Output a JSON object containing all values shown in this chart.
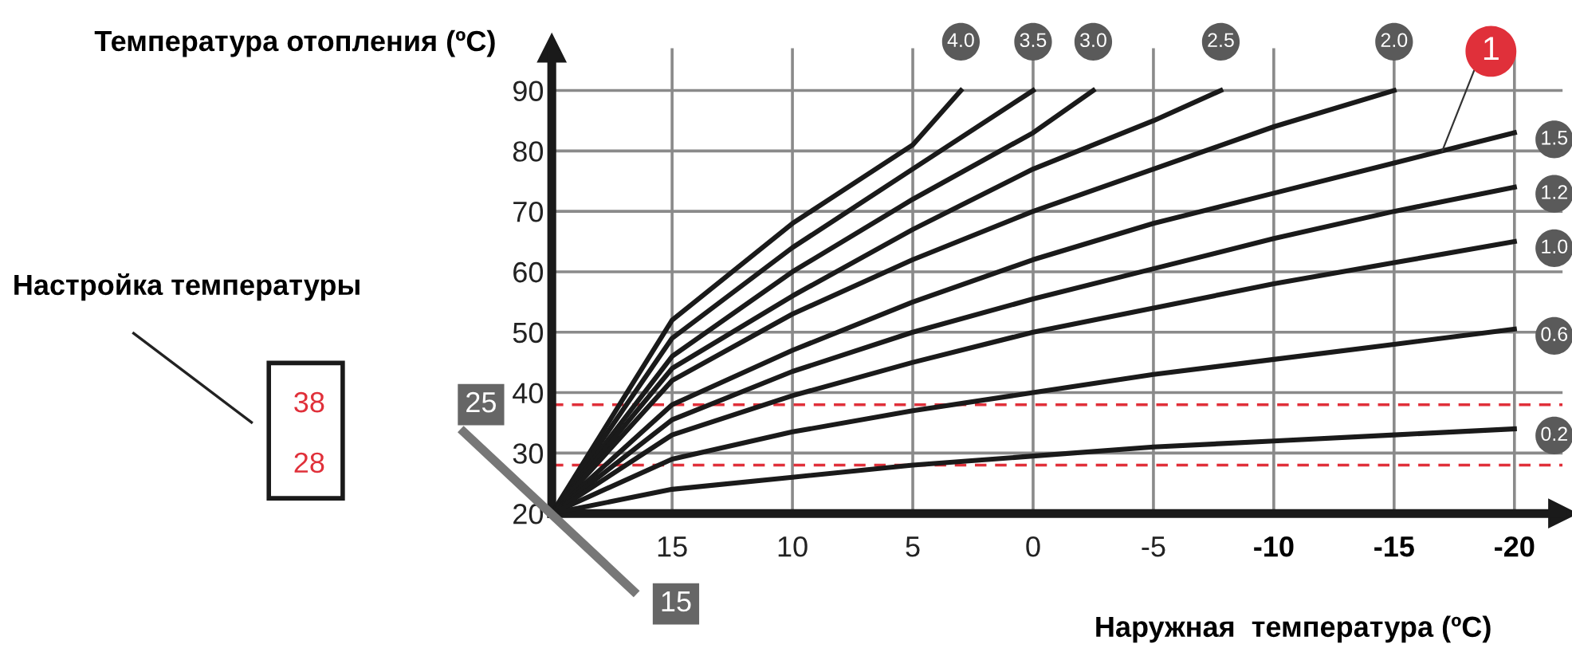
{
  "chart_data": {
    "type": "line",
    "xlabel": "Наружная  температура (ºC)",
    "ylabel": "Температура отопления (ºC)",
    "xlim": [
      20,
      -22
    ],
    "ylim": [
      20,
      97
    ],
    "xticks": [
      15,
      10,
      5,
      0,
      -5,
      -10,
      -15,
      -20
    ],
    "yticks": [
      20,
      30,
      40,
      50,
      60,
      70,
      80,
      90
    ],
    "grid": true,
    "legend": false,
    "marker": "none",
    "line_style": "solid",
    "series": [
      {
        "name": "4.0",
        "color": "#1a1a1a",
        "x": [
          20,
          15,
          10,
          5,
          3
        ],
        "values": [
          20,
          52,
          68,
          81,
          90
        ]
      },
      {
        "name": "3.5",
        "color": "#1a1a1a",
        "x": [
          20,
          15,
          10,
          5,
          0
        ],
        "values": [
          20,
          49,
          64,
          77,
          90
        ]
      },
      {
        "name": "3.0",
        "color": "#1a1a1a",
        "x": [
          20,
          15,
          10,
          5,
          0,
          -2.5
        ],
        "values": [
          20,
          46,
          60,
          72,
          83,
          90
        ]
      },
      {
        "name": "2.5",
        "color": "#1a1a1a",
        "x": [
          20,
          15,
          10,
          5,
          0,
          -5,
          -7.8
        ],
        "values": [
          20,
          44,
          56,
          67,
          77,
          85,
          90
        ]
      },
      {
        "name": "2.0",
        "color": "#1a1a1a",
        "x": [
          20,
          15,
          10,
          5,
          0,
          -5,
          -10,
          -15
        ],
        "values": [
          20,
          42,
          53,
          62,
          70,
          77,
          84,
          90
        ]
      },
      {
        "name": "1.5",
        "color": "#1a1a1a",
        "x": [
          20,
          15,
          10,
          5,
          0,
          -5,
          -10,
          -15,
          -20
        ],
        "values": [
          20,
          38,
          47,
          55,
          62,
          68,
          73,
          78,
          83
        ]
      },
      {
        "name": "1.2",
        "color": "#1a1a1a",
        "x": [
          20,
          15,
          10,
          5,
          0,
          -5,
          -10,
          -15,
          -20
        ],
        "values": [
          20,
          35.5,
          43.5,
          50,
          55.5,
          60.5,
          65.5,
          70,
          74
        ]
      },
      {
        "name": "1.0",
        "color": "#1a1a1a",
        "x": [
          20,
          15,
          10,
          5,
          0,
          -5,
          -10,
          -15,
          -20
        ],
        "values": [
          20,
          33,
          39.5,
          45,
          50,
          54,
          58,
          61.5,
          65
        ]
      },
      {
        "name": "0.6",
        "color": "#1a1a1a",
        "x": [
          20,
          15,
          10,
          5,
          0,
          -5,
          -10,
          -15,
          -20
        ],
        "values": [
          20,
          29,
          33.5,
          37,
          40,
          43,
          45.5,
          48,
          50.5
        ]
      },
      {
        "name": "0.2",
        "color": "#1a1a1a",
        "x": [
          20,
          15,
          10,
          5,
          0,
          -5,
          -10,
          -15,
          -20
        ],
        "values": [
          20,
          24,
          26,
          28,
          29.5,
          31,
          32,
          33,
          34
        ]
      }
    ],
    "ref_lines": [
      {
        "axis": "y",
        "value": 38,
        "color": "#e0303a",
        "line_style": "dashed"
      },
      {
        "axis": "y",
        "value": 28,
        "color": "#e0303a",
        "line_style": "dashed"
      }
    ],
    "annotations": [
      "Настройка температуры",
      "38",
      "28",
      "25",
      "15",
      {
        "text": "1",
        "x": -17,
        "y": 80
      }
    ]
  }
}
